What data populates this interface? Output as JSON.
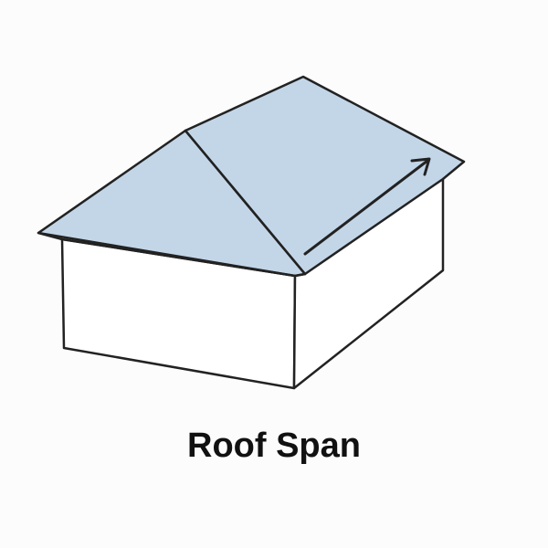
{
  "diagram": {
    "caption": "Roof Span",
    "colors": {
      "roof_fill": "#c3d6e8",
      "wall_fill": "#ffffff",
      "stroke": "#222222",
      "background": "#fcfcfc"
    },
    "parts": [
      "left-wall",
      "front-wall",
      "left-roof-plane",
      "front-roof-plane",
      "hip-line",
      "span-arrow"
    ]
  }
}
